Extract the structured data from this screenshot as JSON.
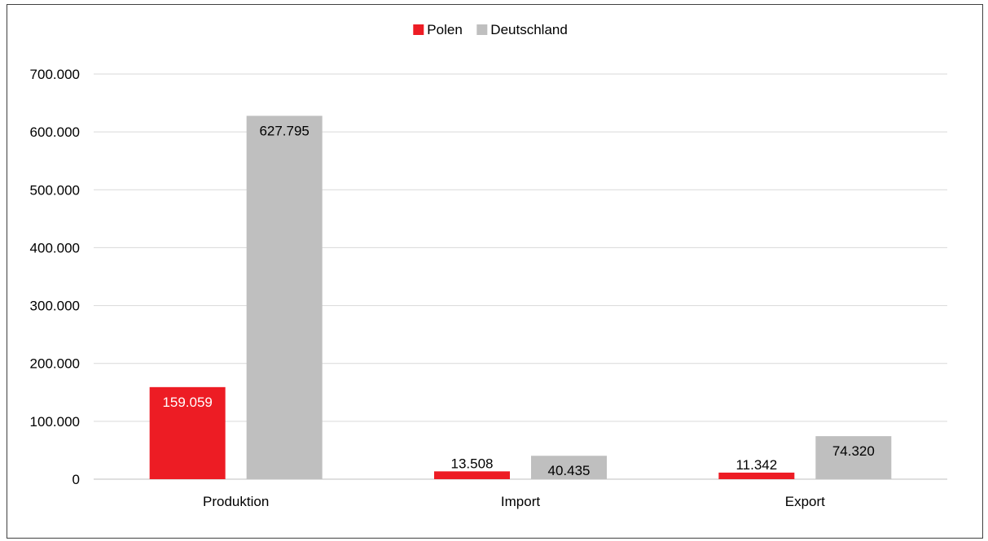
{
  "chart_data": {
    "type": "bar",
    "title": "",
    "xlabel": "",
    "ylabel": "",
    "categories": [
      "Produktion",
      "Import",
      "Export"
    ],
    "series": [
      {
        "name": "Polen",
        "color": "#ED1C24",
        "values": [
          159059,
          13508,
          11342
        ],
        "labels": [
          "159.059",
          "13.508",
          "11.342"
        ]
      },
      {
        "name": "Deutschland",
        "color": "#BFBFBF",
        "values": [
          627795,
          40435,
          74320
        ],
        "labels": [
          "627.795",
          "40.435",
          "74.320"
        ]
      }
    ],
    "ylim": [
      0,
      700000
    ],
    "yticks": [
      0,
      100000,
      200000,
      300000,
      400000,
      500000,
      600000,
      700000
    ],
    "ytick_labels": [
      "0",
      "100.000",
      "200.000",
      "300.000",
      "400.000",
      "500.000",
      "600.000",
      "700.000"
    ],
    "grid": true,
    "legend_position": "top-center"
  }
}
